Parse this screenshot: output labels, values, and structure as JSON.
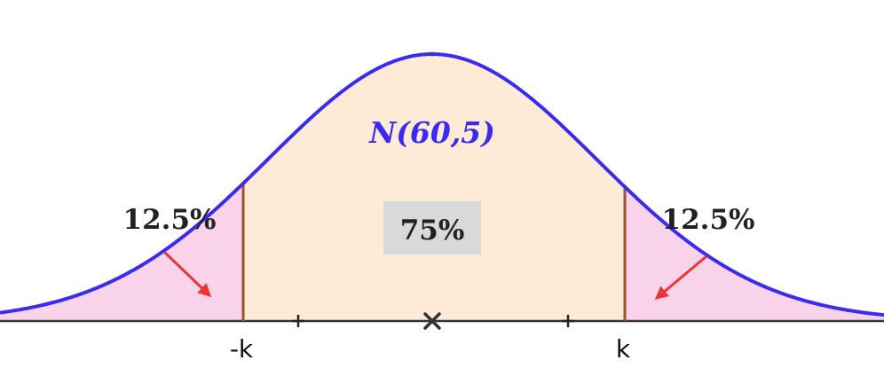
{
  "distribution": {
    "label": "N(60,5)",
    "mean": 60,
    "sd": 5,
    "line_color": "#3b2bef"
  },
  "regions": {
    "left_tail": {
      "label": "12.5%",
      "fill": "#f9d3ea"
    },
    "middle": {
      "label": "75%",
      "fill": "#fdebd8",
      "label_bg": "#d9d9d9"
    },
    "right_tail": {
      "label": "12.5%",
      "fill": "#f9d3ea"
    }
  },
  "axis": {
    "left_mark": "-k",
    "right_mark": "k",
    "mean_marker": "cross-icon"
  },
  "colors": {
    "boundary": "#a0522d",
    "arrow": "#ee3333",
    "axis": "#333333"
  }
}
